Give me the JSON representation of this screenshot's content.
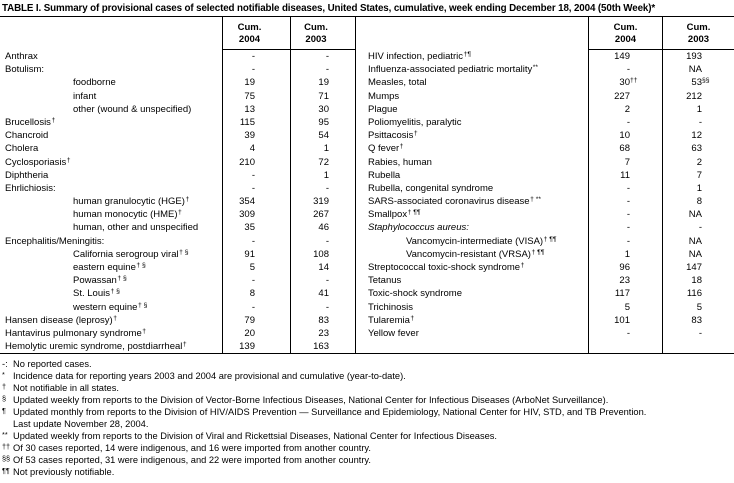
{
  "title": "TABLE I. Summary of provisional cases of selected notifiable diseases, United States, cumulative, week ending December 18, 2004 (50th Week)*",
  "header": {
    "cum": "Cum.",
    "y2004": "2004",
    "y2003": "2003"
  },
  "colors": {
    "ink": "#000000",
    "paper": "#ffffff"
  },
  "left_rows": [
    {
      "label": "Anthrax",
      "c2004": "-",
      "c2003": "-"
    },
    {
      "label": "Botulism:",
      "c2004": "-",
      "c2003": "-"
    },
    {
      "label": "foodborne",
      "indent": true,
      "c2004": "19",
      "c2003": "19"
    },
    {
      "label": "infant",
      "indent": true,
      "c2004": "75",
      "c2003": "71"
    },
    {
      "label": "other (wound & unspecified)",
      "indent": true,
      "c2004": "13",
      "c2003": "30"
    },
    {
      "label": "Brucellosis",
      "sup": "†",
      "c2004": "115",
      "c2003": "95"
    },
    {
      "label": "Chancroid",
      "c2004": "39",
      "c2003": "54"
    },
    {
      "label": "Cholera",
      "c2004": "4",
      "c2003": "1"
    },
    {
      "label": "Cyclosporiasis",
      "sup": "†",
      "c2004": "210",
      "c2003": "72"
    },
    {
      "label": "Diphtheria",
      "c2004": "-",
      "c2003": "1"
    },
    {
      "label": "Ehrlichiosis:",
      "c2004": "-",
      "c2003": "-"
    },
    {
      "label": "human granulocytic (HGE)",
      "sup": "†",
      "indent": true,
      "c2004": "354",
      "c2003": "319"
    },
    {
      "label": "human monocytic (HME)",
      "sup": "†",
      "indent": true,
      "c2004": "309",
      "c2003": "267"
    },
    {
      "label": "human, other and unspecified",
      "indent": true,
      "c2004": "35",
      "c2003": "46"
    },
    {
      "label": "Encephalitis/Meningitis:",
      "c2004": "-",
      "c2003": "-"
    },
    {
      "label": "California serogroup viral",
      "sup": "† §",
      "indent": true,
      "c2004": "91",
      "c2003": "108"
    },
    {
      "label": "eastern equine",
      "sup": "† §",
      "indent": true,
      "c2004": "5",
      "c2003": "14"
    },
    {
      "label": "Powassan",
      "sup": "† §",
      "indent": true,
      "c2004": "-",
      "c2003": "-"
    },
    {
      "label": "St. Louis",
      "sup": "† §",
      "indent": true,
      "c2004": "8",
      "c2003": "41"
    },
    {
      "label": "western equine",
      "sup": "† §",
      "indent": true,
      "c2004": "-",
      "c2003": "-"
    },
    {
      "label": "Hansen disease (leprosy)",
      "sup": "†",
      "c2004": "79",
      "c2003": "83"
    },
    {
      "label": "Hantavirus pulmonary syndrome",
      "sup": "†",
      "c2004": "20",
      "c2003": "23"
    },
    {
      "label": "Hemolytic uremic syndrome, postdiarrheal",
      "sup": "†",
      "c2004": "139",
      "c2003": "163"
    }
  ],
  "right_rows": [
    {
      "label": "HIV infection, pediatric",
      "sup": "†¶",
      "c2004": "149",
      "c2003": "193"
    },
    {
      "label": "Influenza-associated pediatric mortality",
      "sup": "**",
      "c2004": "-",
      "c2003": "NA"
    },
    {
      "label": "Measles, total",
      "c2004": "30",
      "c2004sup": "††",
      "c2003": "53",
      "c2003sup": "§§"
    },
    {
      "label": "Mumps",
      "c2004": "227",
      "c2003": "212"
    },
    {
      "label": "Plague",
      "c2004": "2",
      "c2003": "1"
    },
    {
      "label": "Poliomyelitis, paralytic",
      "c2004": "-",
      "c2003": "-"
    },
    {
      "label": "Psittacosis",
      "sup": "†",
      "c2004": "10",
      "c2003": "12"
    },
    {
      "label": "Q fever",
      "sup": "†",
      "c2004": "68",
      "c2003": "63"
    },
    {
      "label": "Rabies, human",
      "c2004": "7",
      "c2003": "2"
    },
    {
      "label": "Rubella",
      "c2004": "11",
      "c2003": "7"
    },
    {
      "label": "Rubella, congenital syndrome",
      "c2004": "-",
      "c2003": "1"
    },
    {
      "label": "SARS-associated coronavirus disease",
      "sup": "† **",
      "c2004": "-",
      "c2003": "8"
    },
    {
      "label": "Smallpox",
      "sup": "† ¶¶",
      "c2004": "-",
      "c2003": "NA"
    },
    {
      "label": "Staphylococcus aureus:",
      "italic": true,
      "c2004": "-",
      "c2003": "-"
    },
    {
      "label": "Vancomycin-intermediate (VISA)",
      "sup": "† ¶¶",
      "indent": true,
      "c2004": "-",
      "c2003": "NA"
    },
    {
      "label": "Vancomycin-resistant (VRSA)",
      "sup": "† ¶¶",
      "indent": true,
      "c2004": "1",
      "c2003": "NA"
    },
    {
      "label": "Streptococcal toxic-shock syndrome",
      "sup": "†",
      "c2004": "96",
      "c2003": "147"
    },
    {
      "label": "Tetanus",
      "c2004": "23",
      "c2003": "18"
    },
    {
      "label": "Toxic-shock syndrome",
      "c2004": "117",
      "c2003": "116"
    },
    {
      "label": "Trichinosis",
      "c2004": "5",
      "c2003": "5"
    },
    {
      "label": "Tularemia",
      "sup": "†",
      "c2004": "101",
      "c2003": "83"
    },
    {
      "label": "Yellow fever",
      "c2004": "-",
      "c2003": "-"
    }
  ],
  "footnotes": [
    {
      "marker": "-:",
      "text": "No reported cases."
    },
    {
      "marker": "*",
      "text": "Incidence data for reporting years 2003 and 2004 are provisional and cumulative (year-to-date)."
    },
    {
      "marker": "†",
      "text": "Not notifiable in all states."
    },
    {
      "marker": "§",
      "text": "Updated weekly from reports to the Division of Vector-Borne Infectious Diseases, National Center for Infectious Diseases (ArboNet Surveillance)."
    },
    {
      "marker": "¶",
      "text": "Updated monthly from reports to the Division of HIV/AIDS Prevention — Surveillance and Epidemiology, National Center for HIV, STD, and TB Prevention."
    },
    {
      "marker": "",
      "text": "Last update November 28, 2004."
    },
    {
      "marker": "**",
      "text": "Updated weekly from reports to the Division of Viral and Rickettsial Diseases, National Center for Infectious Diseases."
    },
    {
      "marker": "††",
      "text": "Of 30 cases reported, 14 were indigenous, and 16 were imported from another country."
    },
    {
      "marker": "§§",
      "text": "Of 53 cases reported, 31 were indigenous, and 22 were imported from another country."
    },
    {
      "marker": "¶¶",
      "text": "Not previously notifiable."
    }
  ]
}
